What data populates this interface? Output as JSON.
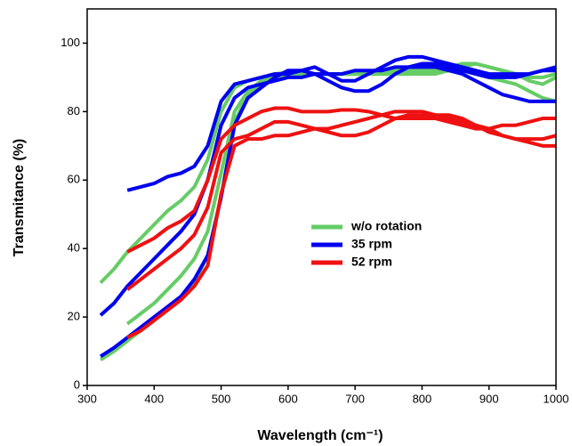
{
  "chart_data": {
    "type": "line",
    "x_label": "Wavelength (cm⁻¹)",
    "y_label": "Transmitance (%)",
    "x": [
      320,
      340,
      360,
      380,
      400,
      420,
      440,
      460,
      480,
      500,
      520,
      540,
      560,
      580,
      600,
      620,
      640,
      660,
      680,
      700,
      720,
      740,
      760,
      780,
      800,
      820,
      840,
      860,
      880,
      900,
      920,
      940,
      960,
      980,
      1000
    ],
    "series": [
      {
        "name": "w/o rotation",
        "color": "#66cc66",
        "curves": [
          {
            "values": [
              30,
              34,
              39,
              43,
              47,
              51,
              54,
              58,
              66,
              80,
              87,
              89,
              90,
              91,
              91.5,
              91,
              91,
              91,
              91,
              91,
              91,
              91,
              91,
              91,
              91.5,
              92,
              93,
              94,
              94,
              93,
              92,
              91,
              90,
              90,
              91
            ]
          },
          {
            "values": [
              null,
              null,
              18,
              21,
              24,
              28,
              32,
              37,
              45,
              62,
              80,
              86,
              89,
              90,
              91,
              91,
              91,
              91,
              91,
              91,
              91,
              92,
              92,
              92,
              92,
              92,
              92,
              92,
              91,
              90,
              89,
              88,
              86,
              84,
              83
            ]
          },
          {
            "values": [
              7.5,
              10,
              13,
              16,
              19,
              22,
              26,
              30,
              38,
              55,
              77,
              85,
              88,
              90,
              91,
              91.5,
              91,
              91,
              91,
              91,
              91,
              91,
              91,
              91,
              91,
              91,
              92,
              93,
              94,
              93,
              92,
              91,
              89,
              88,
              90
            ]
          }
        ]
      },
      {
        "name": "35 rpm",
        "color": "#0000ee",
        "curves": [
          {
            "values": [
              null,
              null,
              57,
              58,
              59,
              61,
              62,
              64,
              70,
              83,
              88,
              89,
              90,
              91,
              91,
              92,
              93,
              91,
              89,
              89,
              91,
              93,
              95,
              96,
              96,
              95,
              94,
              93,
              92,
              91,
              91,
              91,
              91,
              92,
              93
            ]
          },
          {
            "values": [
              20.5,
              24,
              29,
              33,
              37,
              41,
              45,
              50,
              60,
              76,
              84,
              87,
              88,
              89,
              90,
              90,
              91,
              91,
              91,
              92,
              92,
              92,
              93,
              93,
              93,
              93,
              92,
              91,
              89,
              87,
              85,
              84,
              83,
              83,
              83
            ]
          },
          {
            "values": [
              8.5,
              11,
              14,
              17,
              20,
              23,
              26,
              31,
              38,
              55,
              76,
              84,
              87,
              90,
              92,
              92,
              91,
              89,
              87,
              86,
              86,
              88,
              91,
              93,
              94,
              94,
              93,
              92,
              91,
              90,
              90,
              90,
              91,
              92,
              92
            ]
          }
        ]
      },
      {
        "name": "52 rpm",
        "color": "#ee1111",
        "curves": [
          {
            "values": [
              null,
              null,
              39,
              41,
              43,
              46,
              48,
              51,
              60,
              72,
              76,
              78,
              80,
              81,
              81,
              80,
              80,
              80,
              80.5,
              80.5,
              80,
              79,
              78,
              78,
              78,
              78,
              77,
              76,
              75,
              75,
              76,
              76,
              77,
              78,
              78
            ]
          },
          {
            "values": [
              null,
              null,
              28,
              31,
              34,
              37,
              40,
              44,
              52,
              68,
              72,
              73,
              75,
              77,
              77,
              76,
              75,
              75,
              76,
              77,
              78,
              79,
              80,
              80,
              80,
              79,
              79,
              78,
              76,
              74,
              73,
              72,
              72,
              72,
              73
            ]
          },
          {
            "values": [
              null,
              null,
              14,
              16,
              19,
              22,
              25,
              29,
              35,
              56,
              70,
              72,
              72,
              73,
              73,
              74,
              75,
              74,
              73,
              73,
              74,
              76,
              78,
              79,
              79,
              79,
              78,
              77,
              76,
              75,
              73,
              72,
              71,
              70,
              70
            ]
          }
        ]
      }
    ],
    "xlim": [
      300,
      1000
    ],
    "xticks": [
      300,
      400,
      500,
      600,
      700,
      800,
      900,
      1000
    ],
    "ylim": [
      0,
      110
    ],
    "yticks": [
      0,
      20,
      40,
      60,
      80,
      100
    ],
    "grid": false,
    "legend": "center"
  }
}
